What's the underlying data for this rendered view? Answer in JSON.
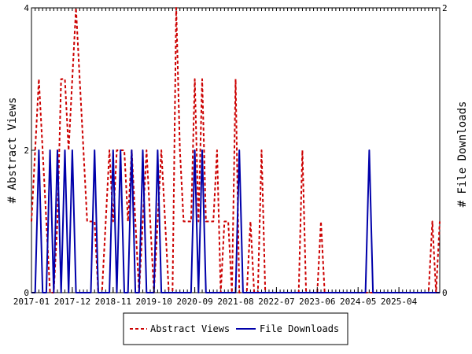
{
  "chart_data": {
    "type": "line",
    "x_tick_labels": [
      "2017-01",
      "2017-12",
      "2018-11",
      "2019-10",
      "2020-09",
      "2021-08",
      "2022-07",
      "2023-06",
      "2024-05",
      "2025-04"
    ],
    "ylabel_left": "# Abstract Views",
    "ylabel_right": "# File Downloads",
    "y_left_ticks": [
      "0",
      "2",
      "4"
    ],
    "y_right_ticks": [
      "0",
      "2"
    ],
    "ylim_left": [
      0,
      4
    ],
    "ylim_right": [
      0,
      2
    ],
    "legend_position": "bottom-center",
    "series": [
      {
        "name": "Abstract Views",
        "axis": "left",
        "color": "#cc0000",
        "style": "dashed",
        "points": [
          [
            0,
            1
          ],
          [
            1,
            2
          ],
          [
            2,
            3
          ],
          [
            3,
            2
          ],
          [
            4,
            1
          ],
          [
            5,
            0
          ],
          [
            6,
            0
          ],
          [
            7,
            1
          ],
          [
            8,
            3
          ],
          [
            9,
            3
          ],
          [
            10,
            2
          ],
          [
            11,
            3
          ],
          [
            12,
            4
          ],
          [
            13,
            3
          ],
          [
            14,
            2
          ],
          [
            15,
            1
          ],
          [
            16,
            1
          ],
          [
            17,
            1
          ],
          [
            18,
            0
          ],
          [
            19,
            0
          ],
          [
            20,
            1
          ],
          [
            21,
            2
          ],
          [
            22,
            1
          ],
          [
            23,
            2
          ],
          [
            24,
            2
          ],
          [
            25,
            2
          ],
          [
            26,
            1
          ],
          [
            27,
            2
          ],
          [
            28,
            1
          ],
          [
            29,
            0
          ],
          [
            30,
            1
          ],
          [
            31,
            2
          ],
          [
            32,
            1
          ],
          [
            33,
            0
          ],
          [
            34,
            1
          ],
          [
            35,
            2
          ],
          [
            36,
            1
          ],
          [
            37,
            0
          ],
          [
            38,
            0
          ],
          [
            39,
            4
          ],
          [
            40,
            2
          ],
          [
            41,
            1
          ],
          [
            42,
            1
          ],
          [
            43,
            1
          ],
          [
            44,
            3
          ],
          [
            45,
            1
          ],
          [
            46,
            3
          ],
          [
            47,
            1
          ],
          [
            48,
            1
          ],
          [
            49,
            1
          ],
          [
            50,
            2
          ],
          [
            51,
            0
          ],
          [
            52,
            1
          ],
          [
            53,
            1
          ],
          [
            54,
            0
          ],
          [
            55,
            3
          ],
          [
            56,
            0
          ],
          [
            57,
            0
          ],
          [
            58,
            0
          ],
          [
            59,
            1
          ],
          [
            60,
            0
          ],
          [
            61,
            0
          ],
          [
            62,
            2
          ],
          [
            63,
            0
          ],
          [
            64,
            0
          ],
          [
            65,
            0
          ],
          [
            66,
            0
          ],
          [
            67,
            0
          ],
          [
            68,
            0
          ],
          [
            69,
            0
          ],
          [
            70,
            0
          ],
          [
            71,
            0
          ],
          [
            72,
            0
          ],
          [
            73,
            2
          ],
          [
            74,
            0
          ],
          [
            75,
            0
          ],
          [
            76,
            0
          ],
          [
            77,
            0
          ],
          [
            78,
            1
          ],
          [
            79,
            0
          ],
          [
            80,
            0
          ],
          [
            81,
            0
          ],
          [
            82,
            0
          ],
          [
            83,
            0
          ],
          [
            84,
            0
          ],
          [
            85,
            0
          ],
          [
            86,
            0
          ],
          [
            87,
            0
          ],
          [
            88,
            0
          ],
          [
            89,
            0
          ],
          [
            90,
            0
          ],
          [
            91,
            0
          ],
          [
            92,
            0
          ],
          [
            93,
            0
          ],
          [
            94,
            0
          ],
          [
            95,
            0
          ],
          [
            96,
            0
          ],
          [
            97,
            0
          ],
          [
            98,
            0
          ],
          [
            99,
            0
          ],
          [
            100,
            0
          ],
          [
            101,
            0
          ],
          [
            102,
            0
          ],
          [
            103,
            0
          ],
          [
            104,
            0
          ],
          [
            105,
            0
          ],
          [
            106,
            0
          ],
          [
            107,
            0
          ],
          [
            108,
            1
          ],
          [
            109,
            0
          ],
          [
            110,
            1
          ]
        ]
      },
      {
        "name": "File Downloads",
        "axis": "right",
        "color": "#0000aa",
        "style": "solid",
        "points": [
          [
            0,
            0
          ],
          [
            1,
            0
          ],
          [
            2,
            1
          ],
          [
            3,
            0
          ],
          [
            4,
            0
          ],
          [
            5,
            1
          ],
          [
            6,
            0
          ],
          [
            7,
            1
          ],
          [
            8,
            0
          ],
          [
            9,
            1
          ],
          [
            10,
            0
          ],
          [
            11,
            1
          ],
          [
            12,
            0
          ],
          [
            13,
            0
          ],
          [
            14,
            0
          ],
          [
            15,
            0
          ],
          [
            16,
            0
          ],
          [
            17,
            1
          ],
          [
            18,
            0
          ],
          [
            19,
            0
          ],
          [
            20,
            0
          ],
          [
            21,
            0
          ],
          [
            22,
            1
          ],
          [
            23,
            0
          ],
          [
            24,
            1
          ],
          [
            25,
            0
          ],
          [
            26,
            0
          ],
          [
            27,
            1
          ],
          [
            28,
            0
          ],
          [
            29,
            0
          ],
          [
            30,
            1
          ],
          [
            31,
            0
          ],
          [
            32,
            0
          ],
          [
            33,
            0
          ],
          [
            34,
            1
          ],
          [
            35,
            0
          ],
          [
            36,
            0
          ],
          [
            37,
            0
          ],
          [
            38,
            0
          ],
          [
            39,
            0
          ],
          [
            40,
            0
          ],
          [
            41,
            0
          ],
          [
            42,
            0
          ],
          [
            43,
            0
          ],
          [
            44,
            1
          ],
          [
            45,
            0
          ],
          [
            46,
            1
          ],
          [
            47,
            0
          ],
          [
            48,
            0
          ],
          [
            49,
            0
          ],
          [
            50,
            0
          ],
          [
            51,
            0
          ],
          [
            52,
            0
          ],
          [
            53,
            0
          ],
          [
            54,
            0
          ],
          [
            55,
            0
          ],
          [
            56,
            1
          ],
          [
            57,
            0
          ],
          [
            58,
            0
          ],
          [
            59,
            0
          ],
          [
            60,
            0
          ],
          [
            61,
            0
          ],
          [
            62,
            0
          ],
          [
            63,
            0
          ],
          [
            64,
            0
          ],
          [
            65,
            0
          ],
          [
            66,
            0
          ],
          [
            67,
            0
          ],
          [
            68,
            0
          ],
          [
            69,
            0
          ],
          [
            70,
            0
          ],
          [
            71,
            0
          ],
          [
            72,
            0
          ],
          [
            73,
            0
          ],
          [
            74,
            0
          ],
          [
            75,
            0
          ],
          [
            76,
            0
          ],
          [
            77,
            0
          ],
          [
            78,
            0
          ],
          [
            79,
            0
          ],
          [
            80,
            0
          ],
          [
            81,
            0
          ],
          [
            82,
            0
          ],
          [
            83,
            0
          ],
          [
            84,
            0
          ],
          [
            85,
            0
          ],
          [
            86,
            0
          ],
          [
            87,
            0
          ],
          [
            88,
            0
          ],
          [
            89,
            0
          ],
          [
            90,
            0
          ],
          [
            91,
            1
          ],
          [
            92,
            0
          ],
          [
            93,
            0
          ],
          [
            94,
            0
          ],
          [
            95,
            0
          ],
          [
            96,
            0
          ],
          [
            97,
            0
          ],
          [
            98,
            0
          ],
          [
            99,
            0
          ],
          [
            100,
            0
          ],
          [
            101,
            0
          ],
          [
            102,
            0
          ],
          [
            103,
            0
          ],
          [
            104,
            0
          ],
          [
            105,
            0
          ],
          [
            106,
            0
          ],
          [
            107,
            0
          ],
          [
            108,
            0
          ],
          [
            109,
            0
          ],
          [
            110,
            0
          ]
        ]
      }
    ]
  }
}
